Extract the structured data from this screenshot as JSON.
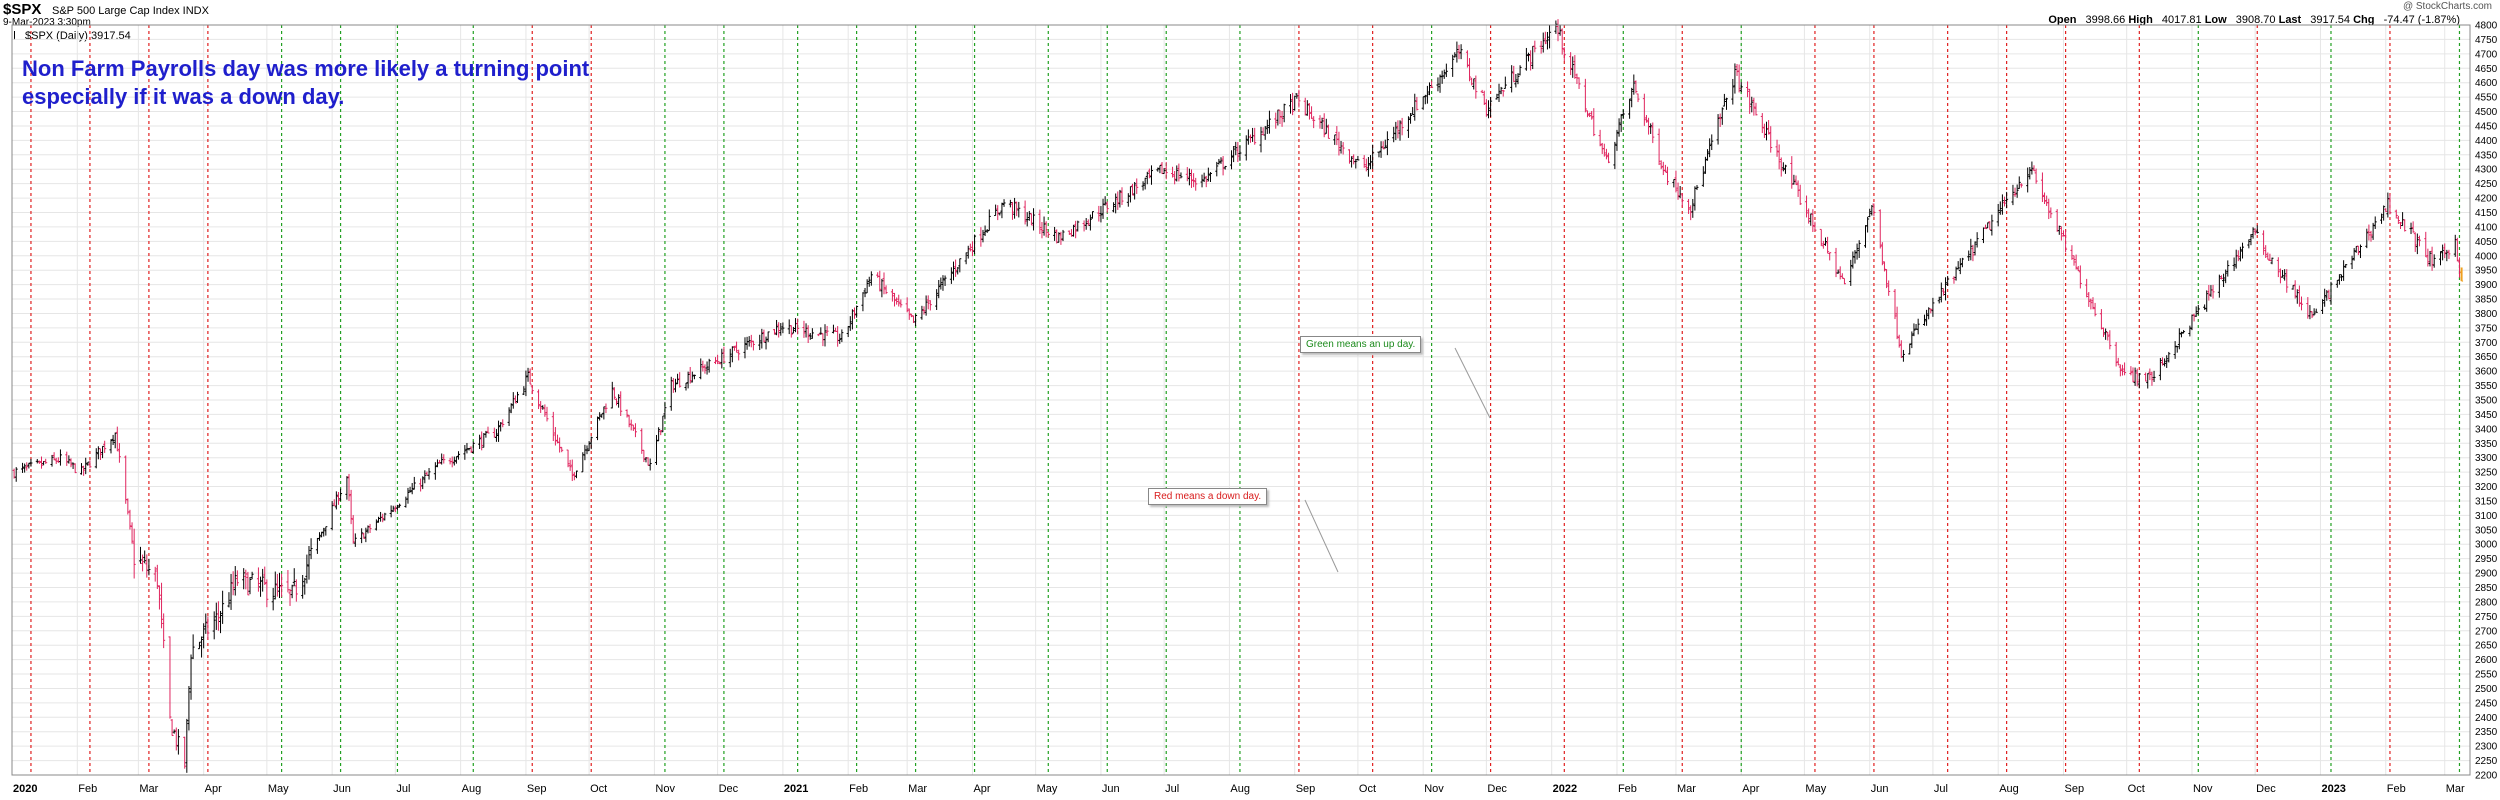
{
  "header": {
    "symbol": "$SPX",
    "name": "S&P 500 Large Cap Index  INDX",
    "datetime": "9-Mar-2023 3:30pm",
    "legend": "$SPX (Daily) 3917.54",
    "copyright": "@ StockCharts.com",
    "quote": {
      "open_label": "Open",
      "open": "3998.66",
      "high_label": "High",
      "high": "4017.81",
      "low_label": "Low",
      "low": "3908.70",
      "last_label": "Last",
      "last": "3917.54",
      "chg_label": "Chg",
      "chg": "-74.47 (-1.87%)"
    }
  },
  "annotation": {
    "line1": "Non Farm Payrolls day was more likely a turning point",
    "line2": "especially if it was a down day."
  },
  "callouts": {
    "green": "Green means an up day.",
    "red": "Red means a down day."
  },
  "colors": {
    "up": "#000000",
    "down": "#e0245e",
    "green_line": "#22a022",
    "red_line": "#e02020",
    "grid": "#e6e6e6",
    "last_bar": "#f0a020",
    "annotation_text": "#1f1fcc"
  },
  "chart_data": {
    "type": "line",
    "title": "$SPX (Daily) 3917.54",
    "ylim": [
      2200,
      4800
    ],
    "y_ticks": [
      2200,
      2250,
      2300,
      2350,
      2400,
      2450,
      2500,
      2550,
      2600,
      2650,
      2700,
      2750,
      2800,
      2850,
      2900,
      2950,
      3000,
      3050,
      3100,
      3150,
      3200,
      3250,
      3300,
      3350,
      3400,
      3450,
      3500,
      3550,
      3600,
      3650,
      3700,
      3750,
      3800,
      3850,
      3900,
      3950,
      4000,
      4050,
      4100,
      4150,
      4200,
      4250,
      4300,
      4350,
      4400,
      4450,
      4500,
      4550,
      4600,
      4650,
      4700,
      4750,
      4800
    ],
    "x_ticks": [
      {
        "label": "2020",
        "month": 0,
        "year": true
      },
      {
        "label": "Feb",
        "month": 1
      },
      {
        "label": "Mar",
        "month": 2
      },
      {
        "label": "Apr",
        "month": 3
      },
      {
        "label": "May",
        "month": 4
      },
      {
        "label": "Jun",
        "month": 5
      },
      {
        "label": "Jul",
        "month": 6
      },
      {
        "label": "Aug",
        "month": 7
      },
      {
        "label": "Sep",
        "month": 8
      },
      {
        "label": "Oct",
        "month": 9
      },
      {
        "label": "Nov",
        "month": 10
      },
      {
        "label": "Dec",
        "month": 11
      },
      {
        "label": "2021",
        "month": 12,
        "year": true
      },
      {
        "label": "Feb",
        "month": 13
      },
      {
        "label": "Mar",
        "month": 14
      },
      {
        "label": "Apr",
        "month": 15
      },
      {
        "label": "May",
        "month": 16
      },
      {
        "label": "Jun",
        "month": 17
      },
      {
        "label": "Jul",
        "month": 18
      },
      {
        "label": "Aug",
        "month": 19
      },
      {
        "label": "Sep",
        "month": 20
      },
      {
        "label": "Oct",
        "month": 21
      },
      {
        "label": "Nov",
        "month": 22
      },
      {
        "label": "Dec",
        "month": 23
      },
      {
        "label": "2022",
        "month": 24,
        "year": true
      },
      {
        "label": "Feb",
        "month": 25
      },
      {
        "label": "Mar",
        "month": 26
      },
      {
        "label": "Apr",
        "month": 27
      },
      {
        "label": "May",
        "month": 28
      },
      {
        "label": "Jun",
        "month": 29
      },
      {
        "label": "Jul",
        "month": 30
      },
      {
        "label": "Aug",
        "month": 31
      },
      {
        "label": "Sep",
        "month": 32
      },
      {
        "label": "Oct",
        "month": 33
      },
      {
        "label": "Nov",
        "month": 34
      },
      {
        "label": "Dec",
        "month": 35
      },
      {
        "label": "2023",
        "month": 36,
        "year": true
      },
      {
        "label": "Feb",
        "month": 37
      },
      {
        "label": "Mar",
        "month": 38
      }
    ],
    "payroll_days": [
      {
        "date": "2020-01-10",
        "direction": "down"
      },
      {
        "date": "2020-02-07",
        "direction": "down"
      },
      {
        "date": "2020-03-06",
        "direction": "down"
      },
      {
        "date": "2020-04-03",
        "direction": "down"
      },
      {
        "date": "2020-05-08",
        "direction": "up"
      },
      {
        "date": "2020-06-05",
        "direction": "up"
      },
      {
        "date": "2020-07-02",
        "direction": "up"
      },
      {
        "date": "2020-08-07",
        "direction": "up"
      },
      {
        "date": "2020-09-04",
        "direction": "down"
      },
      {
        "date": "2020-10-02",
        "direction": "down"
      },
      {
        "date": "2020-11-06",
        "direction": "up"
      },
      {
        "date": "2020-12-04",
        "direction": "up"
      },
      {
        "date": "2021-01-08",
        "direction": "up"
      },
      {
        "date": "2021-02-05",
        "direction": "up"
      },
      {
        "date": "2021-03-05",
        "direction": "up"
      },
      {
        "date": "2021-04-02",
        "direction": "up"
      },
      {
        "date": "2021-05-07",
        "direction": "up"
      },
      {
        "date": "2021-06-04",
        "direction": "up"
      },
      {
        "date": "2021-07-02",
        "direction": "up"
      },
      {
        "date": "2021-08-06",
        "direction": "up"
      },
      {
        "date": "2021-09-03",
        "direction": "down"
      },
      {
        "date": "2021-10-08",
        "direction": "down"
      },
      {
        "date": "2021-11-05",
        "direction": "up"
      },
      {
        "date": "2021-12-03",
        "direction": "down"
      },
      {
        "date": "2022-01-07",
        "direction": "down"
      },
      {
        "date": "2022-02-04",
        "direction": "up"
      },
      {
        "date": "2022-03-04",
        "direction": "down"
      },
      {
        "date": "2022-04-01",
        "direction": "up"
      },
      {
        "date": "2022-05-06",
        "direction": "down"
      },
      {
        "date": "2022-06-03",
        "direction": "down"
      },
      {
        "date": "2022-07-08",
        "direction": "down"
      },
      {
        "date": "2022-08-05",
        "direction": "down"
      },
      {
        "date": "2022-09-02",
        "direction": "down"
      },
      {
        "date": "2022-10-07",
        "direction": "down"
      },
      {
        "date": "2022-11-04",
        "direction": "up"
      },
      {
        "date": "2022-12-02",
        "direction": "down"
      },
      {
        "date": "2023-01-06",
        "direction": "up"
      },
      {
        "date": "2023-02-03",
        "direction": "down"
      },
      {
        "date": "2023-03-08",
        "direction": "up"
      }
    ],
    "price_path": [
      {
        "date": "2020-01-02",
        "close": 3250
      },
      {
        "date": "2020-01-24",
        "close": 3295
      },
      {
        "date": "2020-02-03",
        "close": 3250
      },
      {
        "date": "2020-02-19",
        "close": 3385
      },
      {
        "date": "2020-02-28",
        "close": 2955
      },
      {
        "date": "2020-03-10",
        "close": 2880
      },
      {
        "date": "2020-03-16",
        "close": 2386
      },
      {
        "date": "2020-03-23",
        "close": 2237
      },
      {
        "date": "2020-03-26",
        "close": 2630
      },
      {
        "date": "2020-04-08",
        "close": 2750
      },
      {
        "date": "2020-04-17",
        "close": 2875
      },
      {
        "date": "2020-05-13",
        "close": 2820
      },
      {
        "date": "2020-06-08",
        "close": 3232
      },
      {
        "date": "2020-06-11",
        "close": 3002
      },
      {
        "date": "2020-07-22",
        "close": 3276
      },
      {
        "date": "2020-08-18",
        "close": 3390
      },
      {
        "date": "2020-09-02",
        "close": 3580
      },
      {
        "date": "2020-09-23",
        "close": 3237
      },
      {
        "date": "2020-10-12",
        "close": 3534
      },
      {
        "date": "2020-10-30",
        "close": 3270
      },
      {
        "date": "2020-11-09",
        "close": 3550
      },
      {
        "date": "2020-12-31",
        "close": 3756
      },
      {
        "date": "2021-01-29",
        "close": 3714
      },
      {
        "date": "2021-02-12",
        "close": 3934
      },
      {
        "date": "2021-03-04",
        "close": 3768
      },
      {
        "date": "2021-04-16",
        "close": 4185
      },
      {
        "date": "2021-05-12",
        "close": 4063
      },
      {
        "date": "2021-06-30",
        "close": 4297
      },
      {
        "date": "2021-07-19",
        "close": 4258
      },
      {
        "date": "2021-09-02",
        "close": 4537
      },
      {
        "date": "2021-10-04",
        "close": 4300
      },
      {
        "date": "2021-11-18",
        "close": 4704
      },
      {
        "date": "2021-12-01",
        "close": 4513
      },
      {
        "date": "2022-01-03",
        "close": 4796
      },
      {
        "date": "2022-01-27",
        "close": 4326
      },
      {
        "date": "2022-02-09",
        "close": 4587
      },
      {
        "date": "2022-02-24",
        "close": 4288
      },
      {
        "date": "2022-03-08",
        "close": 4170
      },
      {
        "date": "2022-03-29",
        "close": 4631
      },
      {
        "date": "2022-05-20",
        "close": 3901
      },
      {
        "date": "2022-06-02",
        "close": 4176
      },
      {
        "date": "2022-06-16",
        "close": 3666
      },
      {
        "date": "2022-07-08",
        "close": 3899
      },
      {
        "date": "2022-08-16",
        "close": 4305
      },
      {
        "date": "2022-09-30",
        "close": 3585
      },
      {
        "date": "2022-10-13",
        "close": 3577
      },
      {
        "date": "2022-11-30",
        "close": 4080
      },
      {
        "date": "2022-12-28",
        "close": 3783
      },
      {
        "date": "2023-02-02",
        "close": 4179
      },
      {
        "date": "2023-02-24",
        "close": 3970
      },
      {
        "date": "2023-03-06",
        "close": 4048
      },
      {
        "date": "2023-03-09",
        "close": 3918
      }
    ]
  }
}
